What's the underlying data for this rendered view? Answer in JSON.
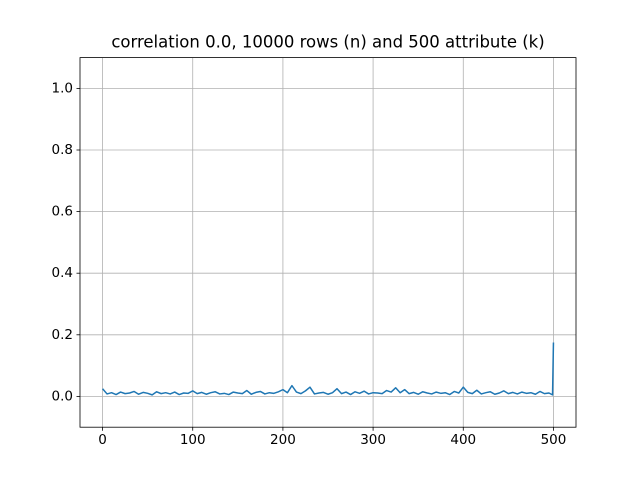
{
  "chart_data": {
    "type": "line",
    "title": "correlation 0.0, 10000 rows (n) and 500 attribute (k)",
    "x": [
      0,
      5,
      10,
      15,
      20,
      25,
      30,
      35,
      40,
      45,
      50,
      55,
      60,
      65,
      70,
      75,
      80,
      85,
      90,
      95,
      100,
      105,
      110,
      115,
      120,
      125,
      130,
      135,
      140,
      145,
      150,
      155,
      160,
      165,
      170,
      175,
      180,
      185,
      190,
      195,
      200,
      205,
      210,
      215,
      220,
      225,
      230,
      235,
      240,
      245,
      250,
      255,
      260,
      265,
      270,
      275,
      280,
      285,
      290,
      295,
      300,
      305,
      310,
      315,
      320,
      325,
      330,
      335,
      340,
      345,
      350,
      355,
      360,
      365,
      370,
      375,
      380,
      385,
      390,
      395,
      400,
      405,
      410,
      415,
      420,
      425,
      430,
      435,
      440,
      445,
      450,
      455,
      460,
      465,
      470,
      475,
      480,
      485,
      490,
      495,
      499,
      500
    ],
    "values": [
      0.025,
      0.008,
      0.012,
      0.006,
      0.014,
      0.009,
      0.011,
      0.016,
      0.007,
      0.013,
      0.01,
      0.005,
      0.015,
      0.009,
      0.012,
      0.008,
      0.014,
      0.006,
      0.011,
      0.01,
      0.018,
      0.009,
      0.013,
      0.007,
      0.012,
      0.015,
      0.008,
      0.01,
      0.006,
      0.014,
      0.011,
      0.009,
      0.019,
      0.007,
      0.013,
      0.016,
      0.008,
      0.012,
      0.01,
      0.015,
      0.022,
      0.012,
      0.035,
      0.014,
      0.009,
      0.018,
      0.03,
      0.008,
      0.011,
      0.013,
      0.007,
      0.012,
      0.025,
      0.009,
      0.014,
      0.006,
      0.015,
      0.01,
      0.017,
      0.008,
      0.012,
      0.011,
      0.009,
      0.019,
      0.014,
      0.028,
      0.012,
      0.022,
      0.009,
      0.013,
      0.007,
      0.015,
      0.011,
      0.008,
      0.014,
      0.01,
      0.012,
      0.006,
      0.016,
      0.011,
      0.03,
      0.013,
      0.009,
      0.02,
      0.008,
      0.012,
      0.015,
      0.007,
      0.011,
      0.018,
      0.009,
      0.013,
      0.008,
      0.014,
      0.01,
      0.012,
      0.007,
      0.016,
      0.009,
      0.011,
      0.005,
      0.175
    ],
    "color": "#1f77b4",
    "xlim": [
      -25,
      525
    ],
    "xticks": [
      0,
      100,
      200,
      300,
      400,
      500
    ],
    "ylim": [
      -0.1,
      1.1
    ],
    "yticks": [
      {
        "value": 0,
        "label": "0.0"
      },
      0.2,
      0.4,
      0.6,
      0.8,
      {
        "value": 1,
        "label": "1.0"
      }
    ],
    "grid": true
  }
}
